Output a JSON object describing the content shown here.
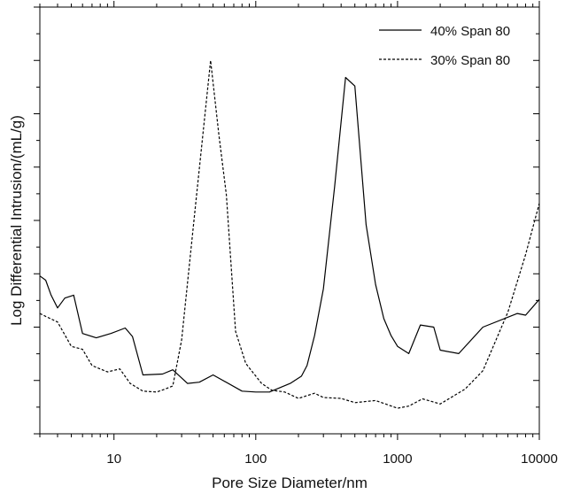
{
  "chart_data": {
    "type": "line",
    "title": "",
    "xlabel": "Pore Size Diameter/nm",
    "ylabel": "Log Differential Intrusion/(mL/g)",
    "x_scale": "log",
    "xlim": [
      3,
      10000
    ],
    "ylim": [
      0,
      1
    ],
    "y_tick_labels": "none",
    "grid": false,
    "legend_position": "top-right",
    "x_ticks": [
      {
        "value": 10,
        "label": "10"
      },
      {
        "value": 100,
        "label": "100"
      },
      {
        "value": 1000,
        "label": "1000"
      },
      {
        "value": 10000,
        "label": "10000"
      }
    ],
    "series": [
      {
        "name": "40% Span 80",
        "style": "solid",
        "color": "#000000",
        "points": [
          [
            3.0,
            0.37
          ],
          [
            3.3,
            0.36
          ],
          [
            3.6,
            0.325
          ],
          [
            4.0,
            0.295
          ],
          [
            4.5,
            0.318
          ],
          [
            5.2,
            0.325
          ],
          [
            6.0,
            0.235
          ],
          [
            7.5,
            0.225
          ],
          [
            9.5,
            0.235
          ],
          [
            12.0,
            0.248
          ],
          [
            13.5,
            0.228
          ],
          [
            16.0,
            0.138
          ],
          [
            22.0,
            0.14
          ],
          [
            26.0,
            0.15
          ],
          [
            33.0,
            0.118
          ],
          [
            40.0,
            0.121
          ],
          [
            50.0,
            0.138
          ],
          [
            80.0,
            0.1
          ],
          [
            100.0,
            0.098
          ],
          [
            125.0,
            0.098
          ],
          [
            175.0,
            0.118
          ],
          [
            210.0,
            0.135
          ],
          [
            230.0,
            0.16
          ],
          [
            260.0,
            0.23
          ],
          [
            300.0,
            0.34
          ],
          [
            360.0,
            0.58
          ],
          [
            430.0,
            0.835
          ],
          [
            500.0,
            0.815
          ],
          [
            600.0,
            0.49
          ],
          [
            700.0,
            0.35
          ],
          [
            800.0,
            0.27
          ],
          [
            900.0,
            0.23
          ],
          [
            1000.0,
            0.205
          ],
          [
            1200.0,
            0.188
          ],
          [
            1450.0,
            0.255
          ],
          [
            1800.0,
            0.25
          ],
          [
            2000.0,
            0.196
          ],
          [
            2700.0,
            0.188
          ],
          [
            4000.0,
            0.25
          ],
          [
            7000.0,
            0.282
          ],
          [
            8000.0,
            0.278
          ],
          [
            10000.0,
            0.315
          ]
        ]
      },
      {
        "name": "30% Span 80",
        "style": "dashed",
        "color": "#000000",
        "points": [
          [
            3.0,
            0.282
          ],
          [
            3.3,
            0.275
          ],
          [
            4.0,
            0.262
          ],
          [
            5.0,
            0.205
          ],
          [
            6.0,
            0.198
          ],
          [
            7.0,
            0.16
          ],
          [
            9.0,
            0.145
          ],
          [
            11.0,
            0.152
          ],
          [
            13.0,
            0.118
          ],
          [
            16.0,
            0.1
          ],
          [
            20.0,
            0.098
          ],
          [
            23.0,
            0.105
          ],
          [
            26.0,
            0.112
          ],
          [
            30.0,
            0.22
          ],
          [
            38.0,
            0.55
          ],
          [
            48.0,
            0.875
          ],
          [
            55.0,
            0.7
          ],
          [
            62.0,
            0.56
          ],
          [
            72.0,
            0.24
          ],
          [
            85.0,
            0.165
          ],
          [
            110.0,
            0.118
          ],
          [
            130.0,
            0.102
          ],
          [
            160.0,
            0.098
          ],
          [
            200.0,
            0.083
          ],
          [
            260.0,
            0.095
          ],
          [
            300.0,
            0.085
          ],
          [
            400.0,
            0.083
          ],
          [
            500.0,
            0.073
          ],
          [
            700.0,
            0.078
          ],
          [
            1000.0,
            0.06
          ],
          [
            1200.0,
            0.065
          ],
          [
            1500.0,
            0.082
          ],
          [
            2000.0,
            0.07
          ],
          [
            3000.0,
            0.105
          ],
          [
            4000.0,
            0.148
          ],
          [
            6000.0,
            0.285
          ],
          [
            8000.0,
            0.42
          ],
          [
            10000.0,
            0.54
          ]
        ]
      }
    ]
  }
}
